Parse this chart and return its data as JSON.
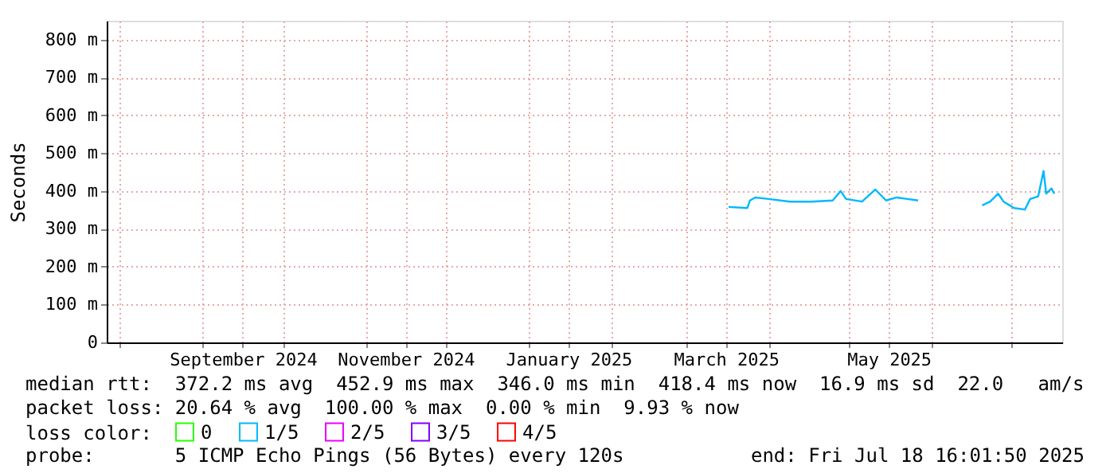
{
  "chart_data": {
    "type": "line",
    "ylabel": "Seconds",
    "x": [
      "2025-03-17",
      "2025-03-24",
      "2025-03-25",
      "2025-03-27",
      "2025-04-01",
      "2025-04-09",
      "2025-04-17",
      "2025-04-25",
      "2025-04-28",
      "2025-04-30",
      "2025-05-06",
      "2025-05-11",
      "2025-05-15",
      "2025-05-19",
      "2025-05-23",
      "2025-05-27",
      "2025-06-08",
      "2025-06-20",
      "2025-06-23",
      "2025-06-26",
      "2025-06-28",
      "2025-07-02",
      "2025-07-06",
      "2025-07-08",
      "2025-07-11",
      "2025-07-13",
      "2025-07-14",
      "2025-07-16",
      "2025-07-17"
    ],
    "series": [
      {
        "name": "0",
        "color": "#26ff00",
        "values": [
          null,
          null,
          null,
          null,
          null,
          null,
          null,
          null,
          null,
          null,
          null,
          null,
          null,
          null,
          null,
          null,
          null,
          null,
          null,
          null,
          null,
          null,
          null,
          null,
          null,
          null,
          null,
          null,
          null
        ]
      },
      {
        "name": "1/5",
        "color": "#00b8ff",
        "values": [
          358,
          355,
          375,
          383,
          379,
          372,
          372,
          375,
          400,
          379,
          372,
          404,
          375,
          383,
          379,
          375,
          null,
          362,
          372,
          393,
          372,
          355,
          351,
          379,
          386,
          453,
          393,
          407,
          393
        ]
      },
      {
        "name": "2/5",
        "color": "#ea00ff",
        "values": [
          null,
          null,
          null,
          null,
          null,
          null,
          null,
          null,
          null,
          null,
          null,
          null,
          null,
          null,
          null,
          null,
          null,
          null,
          null,
          null,
          null,
          null,
          null,
          null,
          null,
          null,
          null,
          null,
          null
        ]
      },
      {
        "name": "3/5",
        "color": "#7e00ff",
        "values": [
          null,
          null,
          null,
          null,
          null,
          null,
          null,
          null,
          null,
          null,
          null,
          null,
          null,
          null,
          null,
          null,
          null,
          null,
          null,
          null,
          null,
          null,
          null,
          null,
          null,
          null,
          null,
          null,
          null
        ]
      },
      {
        "name": "4/5",
        "color": "#ff0000",
        "values": [
          null,
          null,
          null,
          null,
          null,
          null,
          null,
          null,
          null,
          null,
          null,
          null,
          null,
          null,
          null,
          null,
          null,
          null,
          null,
          null,
          null,
          null,
          null,
          null,
          null,
          null,
          null,
          null,
          null
        ]
      }
    ],
    "xlim": [
      "2024-07-27",
      "2025-07-20"
    ],
    "xticks": [
      {
        "value": "2024-08-01",
        "label": null
      },
      {
        "value": "2024-09-01",
        "label": null
      },
      {
        "value": "2024-09-16",
        "label": "September 2024"
      },
      {
        "value": "2024-10-01",
        "label": null
      },
      {
        "value": "2024-11-01",
        "label": null
      },
      {
        "value": "2024-11-16",
        "label": "November 2024"
      },
      {
        "value": "2024-12-01",
        "label": null
      },
      {
        "value": "2025-01-01",
        "label": null
      },
      {
        "value": "2025-01-16",
        "label": "January 2025"
      },
      {
        "value": "2025-02-01",
        "label": null
      },
      {
        "value": "2025-03-01",
        "label": null
      },
      {
        "value": "2025-03-16",
        "label": "March 2025"
      },
      {
        "value": "2025-04-01",
        "label": null
      },
      {
        "value": "2025-05-01",
        "label": null
      },
      {
        "value": "2025-05-16",
        "label": "May 2025"
      },
      {
        "value": "2025-06-01",
        "label": null
      },
      {
        "value": "2025-07-01",
        "label": null
      }
    ],
    "ylim": [
      0,
      850
    ],
    "yticks": [
      0,
      {
        "value": 100,
        "label": "100 m"
      },
      {
        "value": 200,
        "label": "200 m"
      },
      {
        "value": 300,
        "label": "300 m"
      },
      {
        "value": 400,
        "label": "400 m"
      },
      {
        "value": 500,
        "label": "500 m"
      },
      {
        "value": 600,
        "label": "600 m"
      },
      {
        "value": 700,
        "label": "700 m"
      },
      {
        "value": 800,
        "label": "800 m"
      }
    ],
    "grid": true,
    "legend": "bottom left",
    "legend_title": "loss color:",
    "marker": "none",
    "line_style": "solid",
    "annotations": [
      "median rtt:  372.2 ms avg  452.9 ms max  346.0 ms min  418.4 ms now  16.9 ms sd  22.0   am/s",
      "packet loss: 20.64 % avg  100.00 % max  0.00 % min  9.93 % now",
      "probe:       5 ICMP Echo Pings (56 Bytes) every 120s",
      "end: Fri Jul 18 16:01:50 2025"
    ]
  }
}
